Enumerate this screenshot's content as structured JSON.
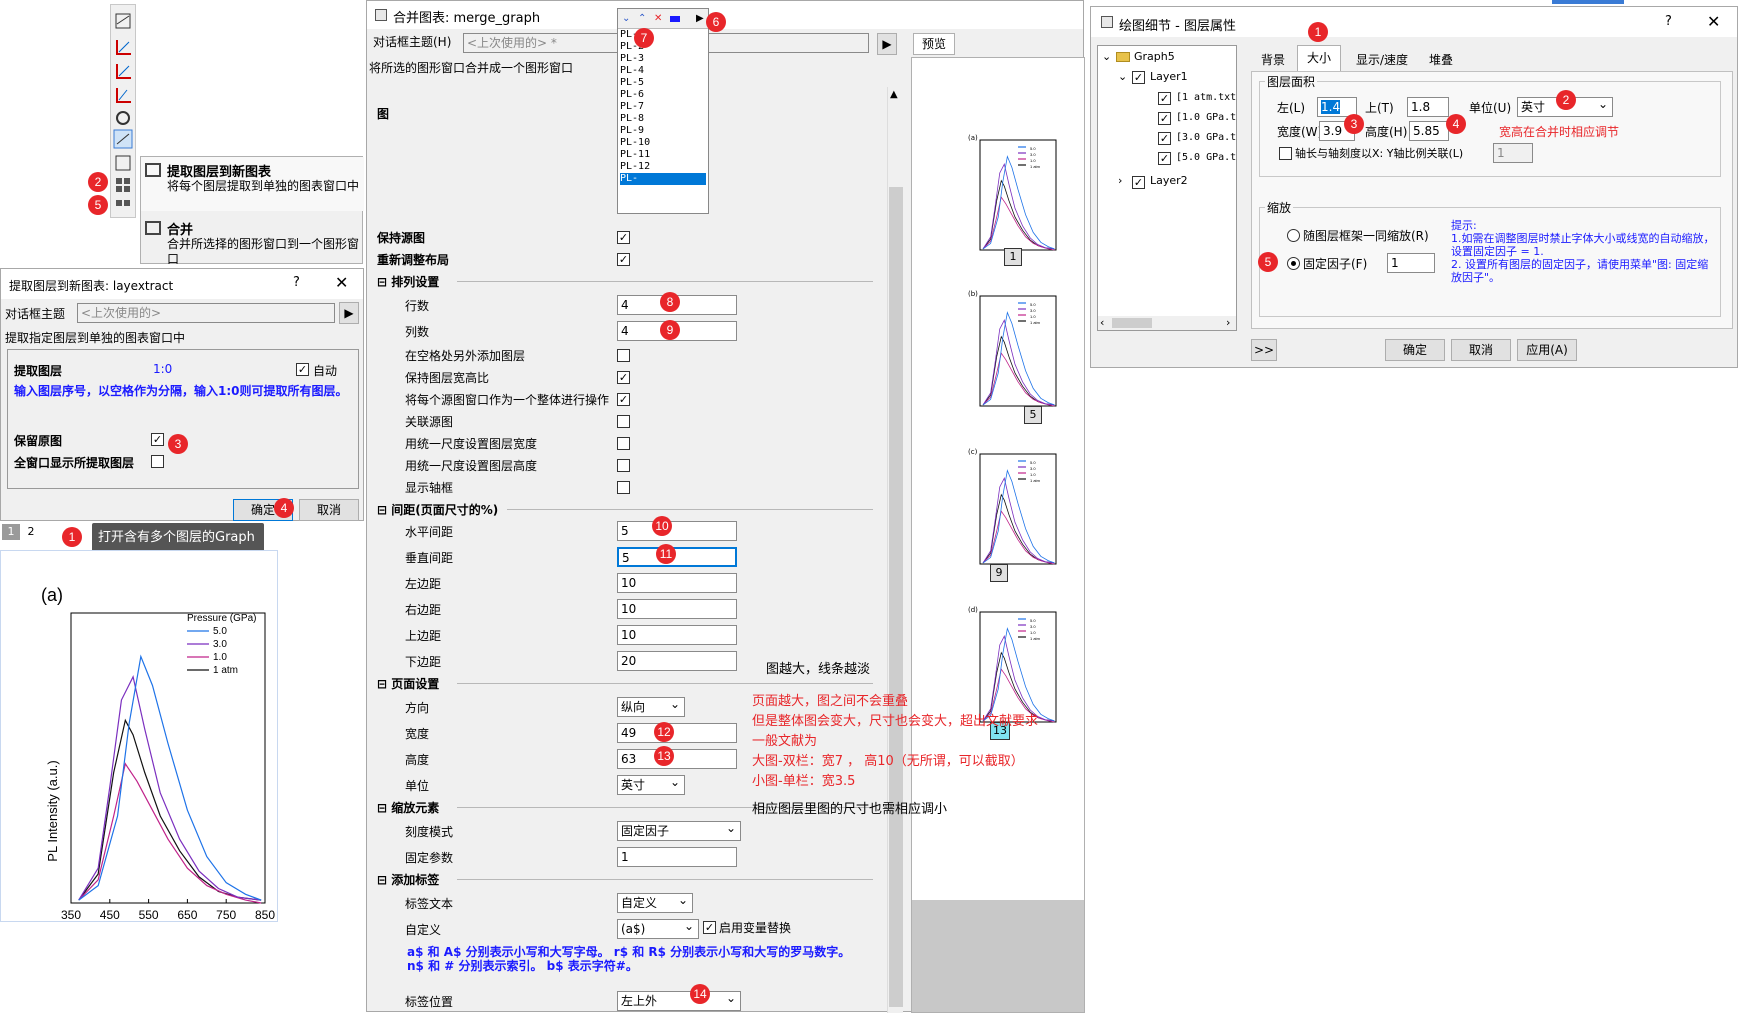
{
  "toolbar_menu": {
    "extract_title": "提取图层到新图表",
    "extract_desc": "将每个图层提取到单独的图表窗口中",
    "merge_title": "合并",
    "merge_desc": "合并所选择的图形窗口到一个图形窗口"
  },
  "extract_dialog": {
    "title": "提取图层到新图表: layextract",
    "help": "?",
    "theme_label": "对话框主题",
    "theme_value": "<上次使用的>",
    "desc": "提取指定图层到单独的图表窗口中",
    "layer_label": "提取图层",
    "layer_value": "1:0",
    "auto_label": "自动",
    "hint": "输入图层序号，以空格作为分隔，输入1:0则可提取所有图层。",
    "keep_label": "保留原图",
    "show_all_label": "全窗口显示所提取图层",
    "ok": "确定",
    "cancel": "取消"
  },
  "graph_tabs": [
    "1",
    "2"
  ],
  "callout_1": "打开含有多个图层的Graph",
  "small_plot": {
    "panel_label": "(a)",
    "legend_title": "Pressure (GPa)",
    "ylabel": "PL Intensity (a.u.)",
    "colors": [
      "#1e73e8",
      "#7b2fbf",
      "#c0238a",
      "#111111"
    ]
  },
  "chart_data": {
    "type": "line",
    "title": "",
    "xlabel": "",
    "ylabel": "PL Intensity (a.u.)",
    "xlim": [
      350,
      850
    ],
    "x_ticks": [
      "350",
      "450",
      "550",
      "650",
      "750",
      "850"
    ],
    "series": [
      {
        "name": "5.0",
        "x": [
          370,
          420,
          470,
          500,
          530,
          560,
          600,
          650,
          700,
          750,
          800,
          840
        ],
        "y": [
          0.01,
          0.06,
          0.3,
          0.62,
          0.85,
          0.75,
          0.55,
          0.32,
          0.16,
          0.07,
          0.03,
          0.01
        ]
      },
      {
        "name": "3.0",
        "x": [
          370,
          420,
          450,
          480,
          510,
          540,
          580,
          630,
          680,
          730,
          780,
          840
        ],
        "y": [
          0.01,
          0.12,
          0.4,
          0.7,
          0.78,
          0.6,
          0.38,
          0.22,
          0.11,
          0.05,
          0.02,
          0.01
        ]
      },
      {
        "name": "1.0",
        "x": [
          370,
          420,
          460,
          490,
          520,
          560,
          600,
          650,
          700,
          750,
          800,
          840
        ],
        "y": [
          0.01,
          0.08,
          0.3,
          0.48,
          0.42,
          0.32,
          0.22,
          0.12,
          0.06,
          0.03,
          0.01,
          0.0
        ]
      },
      {
        "name": "1 atm",
        "x": [
          370,
          420,
          460,
          490,
          510,
          540,
          580,
          630,
          680,
          730,
          780,
          840
        ],
        "y": [
          0.01,
          0.1,
          0.45,
          0.63,
          0.58,
          0.45,
          0.3,
          0.18,
          0.09,
          0.04,
          0.02,
          0.01
        ]
      }
    ]
  },
  "merge_dialog": {
    "title": "合并图表: merge_graph",
    "theme_label": "对话框主题(H)",
    "theme_value": "<上次使用的> *",
    "desc": "将所选的图形窗口合并成一个图形窗口",
    "preview_tab": "预览",
    "graph_label": "图",
    "keep_source": "保持源图",
    "relayout": "重新调整布局",
    "sec_arrange": "排列设置",
    "rows_label": "行数",
    "rows_value": "4",
    "cols_label": "列数",
    "cols_value": "4",
    "add_layer": "在空格处另外添加图层",
    "keep_ratio": "保持图层宽高比",
    "as_whole": "将每个源图窗口作为一个整体进行操作",
    "link_source": "关联源图",
    "uniform_width": "用统一尺度设置图层宽度",
    "uniform_height": "用统一尺度设置图层高度",
    "show_frame": "显示轴框",
    "sec_spacing": "间距(页面尺寸的%)",
    "hgap_label": "水平间距",
    "hgap_value": "5",
    "vgap_label": "垂直间距",
    "vgap_value": "5",
    "left_label": "左边距",
    "left_value": "10",
    "right_label": "右边距",
    "right_value": "10",
    "top_label": "上边距",
    "top_value": "10",
    "bottom_label": "下边距",
    "bottom_value": "20",
    "sec_page": "页面设置",
    "orient_label": "方向",
    "orient_value": "纵向",
    "width_label": "宽度",
    "width_value": "49",
    "height_label": "高度",
    "height_value": "63",
    "unit_label": "单位",
    "unit_value": "英寸",
    "sec_scale": "缩放元素",
    "scale_mode_label": "刻度模式",
    "scale_mode_value": "固定因子",
    "fixed_label": "固定参数",
    "fixed_value": "1",
    "sec_label": "添加标签",
    "label_text_label": "标签文本",
    "label_text_value": "自定义",
    "custom_label": "自定义",
    "custom_value": "(a$)",
    "var_replace": "启用变量替换",
    "label_hint": "a$ 和 A$ 分别表示小写和大写字母。 r$ 和 R$ 分别表示小写和大写的罗马数字。 n$ 和 # 分别表示索引。 b$ 表示字符#。",
    "label_pos_label": "标签位置",
    "label_pos_value": "左上外"
  },
  "pl_list": [
    "PL-1",
    "PL-2",
    "PL-3",
    "PL-4",
    "PL-5",
    "PL-6",
    "PL-7",
    "PL-8",
    "PL-9",
    "PL-10",
    "PL-11",
    "PL-12",
    "PL-"
  ],
  "preview": {
    "panels": [
      "(a)",
      "(b)",
      "(c)",
      "(d)"
    ],
    "badges": [
      "1",
      "5",
      "9",
      "13"
    ]
  },
  "notes": {
    "bigger": "图越大，线条越淡",
    "n1": "页面越大，图之间不会重叠",
    "n2": "但是整体图会变大，尺寸也会变大，超出文献要求",
    "n3": "一般文献为",
    "n4": "大图-双栏：宽7 ， 高10（无所谓，可以截取）",
    "n5": "小图-单栏：宽3.5",
    "n6": "相应图层里图的尺寸也需相应调小"
  },
  "props_dialog": {
    "title": "绘图细节 - 图层属性",
    "help": "?",
    "tree": [
      "Graph5",
      "Layer1",
      "[1 atm.txt",
      "[1.0 GPa.t",
      "[3.0 GPa.t",
      "[5.0 GPa.t",
      "Layer2"
    ],
    "tabs": [
      "背景",
      "大小",
      "显示/速度",
      "堆叠"
    ],
    "area_label": "图层面积",
    "left_label": "左(L)",
    "left_value": "1.4",
    "top_label": "上(T)",
    "top_value": "1.8",
    "unit_label": "单位(U)",
    "unit_value": "英寸",
    "width_label": "宽度(W)",
    "width_value": "3.9",
    "height_label": "高度(H)",
    "height_value": "5.85",
    "note_red": "宽高在合并时相应调节",
    "link_label": "轴长与轴刻度以X: Y轴比例关联(L)",
    "link_value": "1",
    "scale_label": "缩放",
    "radio1": "随图层框架一同缩放(R)",
    "radio2": "固定因子(F)",
    "fixed_value": "1",
    "tip": "提示:\n1.如需在调整图层时禁止字体大小或线宽的自动缩放，设置固定因子 = 1.\n2. 设置所有图层的固定因子，请使用菜单\"图: 固定缩放因子\"。",
    "expand": ">>",
    "ok": "确定",
    "cancel": "取消",
    "apply": "应用(A)"
  },
  "badges": {
    "b1": "1",
    "b2": "2",
    "b3": "3",
    "b4": "4",
    "b5": "5",
    "b6": "6",
    "b7": "7",
    "b8": "8",
    "b9": "9",
    "b10": "10",
    "b11": "11",
    "b12": "12",
    "b13": "13",
    "b14": "14"
  }
}
